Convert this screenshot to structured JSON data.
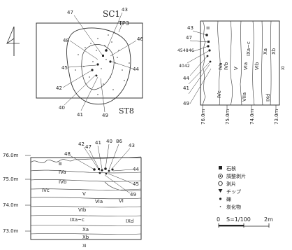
{
  "plan": {
    "pit_label": "SC1",
    "test_pit_label": "TP3",
    "trench_label": "ST8",
    "callouts": [
      "47",
      "43",
      "48",
      "46",
      "45",
      "44",
      "42",
      "40",
      "41",
      "49"
    ]
  },
  "east_section": {
    "elevations": [
      "76.0m",
      "75.0m",
      "74.0m",
      "73.0m"
    ],
    "layers": [
      "IVa",
      "IVb",
      "V",
      "VIa",
      "VIb",
      "IXa~c",
      "Xa",
      "Xb",
      "IVc",
      "VIIa",
      "IXd",
      "Ⅲ"
    ],
    "callouts": [
      "43",
      "47",
      "45",
      "48",
      "46",
      "40",
      "42",
      "44",
      "41",
      "49"
    ],
    "end_mark": "Ⅺ"
  },
  "south_section": {
    "elevations": [
      "76.0m",
      "75.0m",
      "74.0m",
      "73.0m"
    ],
    "layers": [
      "Ⅲ",
      "IVa",
      "IVb",
      "IVc",
      "V",
      "VIa",
      "VI",
      "VIb",
      "IXa~c",
      "IXd",
      "Xa",
      "Xb"
    ],
    "callouts": [
      "48",
      "42",
      "47",
      "41",
      "40",
      "86",
      "43",
      "44",
      "45",
      "49"
    ],
    "end_mark": "Ⅺ"
  },
  "legend": {
    "items": [
      {
        "symbol": "filled-square",
        "label": "石核"
      },
      {
        "symbol": "double-circle",
        "label": "調整剥片"
      },
      {
        "symbol": "circle",
        "label": "剥片"
      },
      {
        "symbol": "triangle",
        "label": "チップ"
      },
      {
        "symbol": "dot",
        "label": "礫"
      },
      {
        "symbol": "small-dot",
        "label": "炭化物"
      }
    ]
  },
  "scale": {
    "start": "0",
    "ratio": "S=1/100",
    "end": "2m"
  }
}
